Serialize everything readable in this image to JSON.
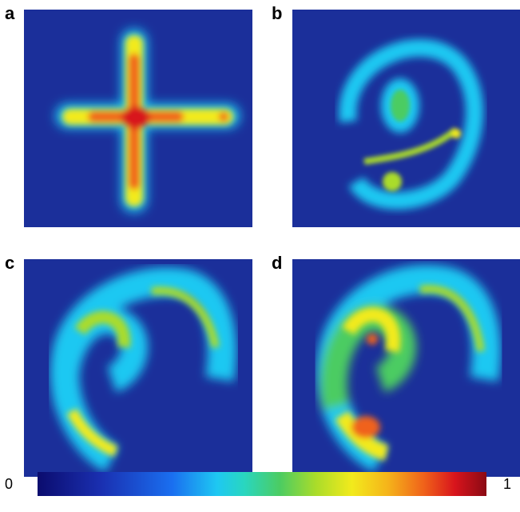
{
  "panels": [
    {
      "label": "a",
      "icon": "cross-intensity-map"
    },
    {
      "label": "b",
      "icon": "ring-and-spiral-intensity-map"
    },
    {
      "label": "c",
      "icon": "double-spiral-intensity-map"
    },
    {
      "label": "d",
      "icon": "bright-double-spiral-intensity-map"
    }
  ],
  "colorbar": {
    "min_label": "0",
    "max_label": "1",
    "colors": [
      "#0b0c6e",
      "#1a6ff0",
      "#1ec8f2",
      "#4ccc62",
      "#f2ea1c",
      "#f0621a",
      "#d8141c",
      "#8a0a14"
    ]
  }
}
